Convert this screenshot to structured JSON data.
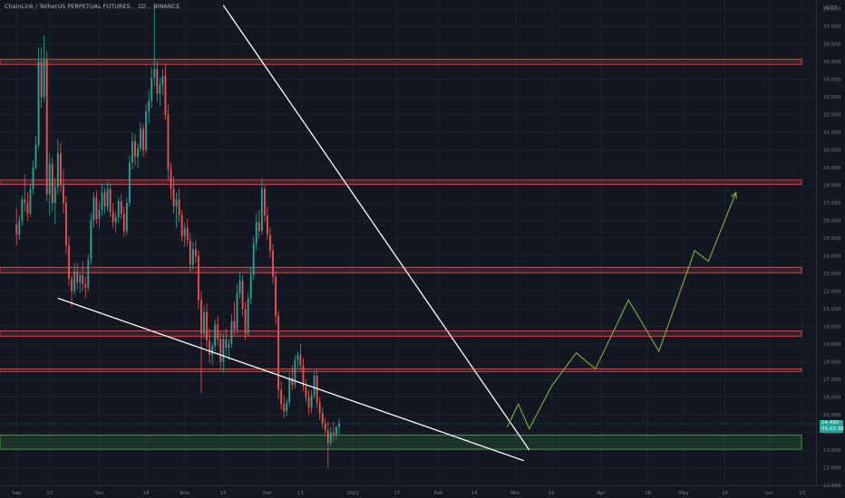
{
  "header": {
    "symbol": "ChainLink / TetherUS PERPETUAL FUTURES",
    "interval": "1D",
    "exchange": "BINANCE",
    "sep": ", "
  },
  "price_tag": {
    "price": "14.490",
    "countdown": "05:01:38"
  },
  "colors": {
    "background": "#131722",
    "up": "#26a69a",
    "down": "#ef5350",
    "resistance": "#ef5350",
    "support": "#4caf50",
    "projection": "#7cb342",
    "trendline": "#ffffff",
    "axis_text": "#787b86"
  },
  "chart_data": {
    "type": "candlestick",
    "y_axis": {
      "unit": "USDT",
      "ylim": [
        11,
        38.5
      ],
      "ticks": [
        "11.000",
        "12.000",
        "13.000",
        "14.000",
        "15.000",
        "16.000",
        "17.000",
        "18.000",
        "19.000",
        "20.000",
        "21.000",
        "22.000",
        "23.000",
        "24.000",
        "25.000",
        "26.000",
        "27.000",
        "28.000",
        "29.000",
        "30.000",
        "31.000",
        "32.000",
        "33.000",
        "34.000",
        "35.000",
        "36.000",
        "37.000",
        "38.000"
      ]
    },
    "x_axis": {
      "ticks": [
        {
          "label": "Sep",
          "day": 0
        },
        {
          "label": "13",
          "day": 12
        },
        {
          "label": "Oct",
          "day": 30
        },
        {
          "label": "18",
          "day": 47
        },
        {
          "label": "Nov",
          "day": 61
        },
        {
          "label": "15",
          "day": 75
        },
        {
          "label": "Dec",
          "day": 91
        },
        {
          "label": "13",
          "day": 103
        },
        {
          "label": "2022",
          "day": 122
        },
        {
          "label": "17",
          "day": 138
        },
        {
          "label": "Feb",
          "day": 153
        },
        {
          "label": "14",
          "day": 166
        },
        {
          "label": "Mar",
          "day": 181
        },
        {
          "label": "14",
          "day": 194
        },
        {
          "label": "Apr",
          "day": 212
        },
        {
          "label": "18",
          "day": 229
        },
        {
          "label": "May",
          "day": 242
        },
        {
          "label": "16",
          "day": 257
        },
        {
          "label": "Jun",
          "day": 273
        },
        {
          "label": "13",
          "day": 285
        }
      ],
      "first_date": "2021-08-27",
      "day_range": [
        -6,
        290
      ]
    },
    "horizontal_levels": [
      {
        "type": "resistance",
        "low": 34.85,
        "high": 35.15
      },
      {
        "type": "resistance",
        "low": 28.05,
        "high": 28.3
      },
      {
        "type": "resistance",
        "low": 23.05,
        "high": 23.35
      },
      {
        "type": "resistance",
        "low": 19.45,
        "high": 19.75
      },
      {
        "type": "resistance",
        "low": 17.45,
        "high": 17.6
      },
      {
        "type": "support",
        "low": 13.05,
        "high": 13.85
      }
    ],
    "trendlines": [
      {
        "from": [
          75,
          38.2
        ],
        "to": [
          186,
          13.0
        ]
      },
      {
        "from": [
          15,
          21.6
        ],
        "to": [
          184,
          12.4
        ]
      }
    ],
    "projection": [
      [
        178,
        14.3
      ],
      [
        182,
        15.6
      ],
      [
        186,
        14.2
      ],
      [
        194,
        16.6
      ],
      [
        203,
        18.5
      ],
      [
        210,
        17.6
      ],
      [
        222,
        21.5
      ],
      [
        233,
        18.6
      ],
      [
        246,
        24.3
      ],
      [
        251,
        23.7
      ],
      [
        261,
        27.6
      ]
    ],
    "current_price": 14.49,
    "candles_ohlc": [
      [
        25.8,
        26.7,
        24.6,
        25.2
      ],
      [
        25.2,
        26.3,
        24.9,
        26.0
      ],
      [
        26.0,
        27.4,
        25.7,
        27.2
      ],
      [
        27.2,
        28.6,
        26.5,
        27.0
      ],
      [
        27.0,
        27.6,
        26.0,
        26.4
      ],
      [
        26.4,
        28.1,
        26.2,
        27.8
      ],
      [
        27.8,
        29.4,
        27.5,
        29.0
      ],
      [
        29.0,
        30.8,
        28.9,
        30.3
      ],
      [
        30.3,
        35.8,
        30.1,
        35.0
      ],
      [
        35.0,
        35.8,
        32.4,
        33.0
      ],
      [
        33.0,
        36.5,
        32.7,
        35.1
      ],
      [
        35.1,
        35.6,
        27.1,
        27.5
      ],
      [
        27.5,
        29.8,
        26.3,
        29.2
      ],
      [
        29.2,
        29.6,
        26.5,
        27.0
      ],
      [
        27.0,
        28.4,
        25.8,
        27.9
      ],
      [
        27.9,
        30.6,
        27.5,
        29.8
      ],
      [
        29.8,
        30.4,
        27.6,
        28.0
      ],
      [
        28.0,
        28.9,
        26.4,
        27.0
      ],
      [
        27.0,
        27.4,
        24.1,
        24.6
      ],
      [
        24.6,
        25.1,
        22.3,
        22.7
      ],
      [
        22.7,
        22.9,
        21.1,
        22.0
      ],
      [
        22.0,
        23.6,
        21.8,
        23.1
      ],
      [
        23.1,
        23.6,
        22.1,
        22.5
      ],
      [
        22.5,
        23.0,
        21.9,
        22.9
      ],
      [
        22.9,
        23.7,
        22.0,
        22.4
      ],
      [
        22.4,
        22.8,
        21.6,
        22.2
      ],
      [
        22.2,
        24.1,
        22.0,
        23.8
      ],
      [
        23.8,
        26.4,
        23.5,
        26.0
      ],
      [
        26.0,
        27.6,
        25.6,
        27.3
      ],
      [
        27.3,
        27.7,
        25.8,
        26.1
      ],
      [
        26.1,
        27.1,
        25.6,
        26.6
      ],
      [
        26.6,
        28.1,
        26.3,
        27.6
      ],
      [
        27.6,
        27.9,
        26.4,
        26.8
      ],
      [
        26.8,
        28.2,
        26.5,
        27.8
      ],
      [
        27.8,
        28.1,
        26.2,
        26.5
      ],
      [
        26.5,
        27.0,
        25.6,
        25.9
      ],
      [
        25.9,
        26.5,
        25.3,
        26.2
      ],
      [
        26.2,
        27.3,
        25.9,
        27.1
      ],
      [
        27.1,
        27.5,
        26.1,
        26.4
      ],
      [
        26.4,
        26.8,
        25.1,
        25.4
      ],
      [
        25.4,
        27.3,
        25.2,
        27.0
      ],
      [
        27.0,
        29.7,
        26.8,
        29.3
      ],
      [
        29.3,
        31.0,
        28.9,
        30.5
      ],
      [
        30.5,
        30.9,
        29.1,
        29.6
      ],
      [
        29.6,
        30.4,
        29.0,
        30.1
      ],
      [
        30.1,
        31.6,
        29.9,
        31.2
      ],
      [
        31.2,
        31.5,
        29.6,
        30.0
      ],
      [
        30.0,
        32.6,
        29.8,
        32.2
      ],
      [
        32.2,
        33.4,
        31.5,
        32.8
      ],
      [
        32.8,
        34.7,
        32.4,
        34.1
      ],
      [
        34.1,
        38.2,
        33.6,
        34.6
      ],
      [
        34.6,
        35.0,
        32.7,
        33.2
      ],
      [
        33.2,
        34.1,
        32.5,
        33.7
      ],
      [
        33.7,
        34.6,
        33.1,
        34.2
      ],
      [
        34.2,
        34.9,
        31.7,
        32.0
      ],
      [
        32.0,
        32.6,
        28.3,
        28.9
      ],
      [
        28.9,
        29.3,
        27.2,
        27.8
      ],
      [
        27.8,
        28.5,
        26.4,
        26.8
      ],
      [
        26.8,
        27.6,
        25.6,
        27.2
      ],
      [
        27.2,
        27.8,
        25.9,
        26.3
      ],
      [
        26.3,
        26.6,
        24.8,
        25.1
      ],
      [
        25.1,
        25.9,
        24.5,
        25.6
      ],
      [
        25.6,
        26.1,
        24.6,
        24.9
      ],
      [
        24.9,
        25.3,
        23.1,
        23.5
      ],
      [
        23.5,
        24.8,
        23.2,
        24.4
      ],
      [
        24.4,
        24.9,
        23.6,
        24.0
      ],
      [
        24.0,
        24.3,
        21.0,
        21.5
      ],
      [
        21.5,
        22.0,
        16.2,
        19.6
      ],
      [
        19.6,
        21.2,
        19.3,
        20.8
      ],
      [
        20.8,
        21.3,
        18.8,
        19.2
      ],
      [
        19.2,
        19.9,
        17.9,
        18.4
      ],
      [
        18.4,
        19.1,
        17.8,
        18.9
      ],
      [
        18.9,
        20.4,
        18.6,
        20.1
      ],
      [
        20.1,
        20.6,
        18.9,
        19.3
      ],
      [
        19.3,
        19.7,
        17.6,
        18.0
      ],
      [
        18.0,
        19.6,
        17.4,
        19.3
      ],
      [
        19.3,
        19.9,
        18.4,
        18.8
      ],
      [
        18.8,
        19.3,
        18.1,
        19.0
      ],
      [
        19.0,
        20.7,
        18.8,
        20.3
      ],
      [
        20.3,
        21.4,
        19.5,
        19.8
      ],
      [
        19.8,
        22.4,
        19.6,
        21.9
      ],
      [
        21.9,
        23.1,
        21.6,
        22.6
      ],
      [
        22.6,
        22.9,
        20.6,
        21.0
      ],
      [
        21.0,
        21.4,
        19.2,
        19.6
      ],
      [
        19.6,
        21.9,
        19.4,
        21.6
      ],
      [
        21.6,
        23.4,
        21.3,
        22.9
      ],
      [
        22.9,
        25.1,
        22.6,
        24.7
      ],
      [
        24.7,
        26.4,
        24.3,
        25.9
      ],
      [
        25.9,
        26.6,
        25.0,
        25.4
      ],
      [
        25.4,
        28.4,
        25.2,
        27.8
      ],
      [
        27.8,
        28.0,
        25.9,
        26.3
      ],
      [
        26.3,
        26.8,
        24.9,
        25.2
      ],
      [
        25.2,
        25.6,
        23.9,
        24.3
      ],
      [
        24.3,
        24.7,
        22.4,
        22.8
      ],
      [
        22.8,
        23.1,
        20.1,
        20.6
      ],
      [
        20.6,
        20.9,
        15.9,
        16.4
      ],
      [
        16.4,
        16.9,
        15.3,
        15.6
      ],
      [
        15.6,
        16.1,
        14.8,
        15.2
      ],
      [
        15.2,
        15.9,
        14.9,
        15.7
      ],
      [
        15.7,
        17.4,
        15.5,
        17.1
      ],
      [
        17.1,
        17.8,
        16.4,
        16.7
      ],
      [
        16.7,
        18.4,
        16.5,
        18.1
      ],
      [
        18.1,
        18.6,
        17.6,
        18.4
      ],
      [
        18.4,
        19.0,
        17.5,
        17.8
      ],
      [
        17.8,
        18.2,
        16.3,
        16.6
      ],
      [
        16.6,
        17.0,
        15.7,
        16.0
      ],
      [
        16.0,
        16.4,
        15.0,
        15.4
      ],
      [
        15.4,
        16.4,
        15.1,
        16.1
      ],
      [
        16.1,
        17.5,
        15.9,
        17.2
      ],
      [
        17.2,
        17.6,
        15.4,
        15.7
      ],
      [
        15.7,
        16.0,
        14.7,
        15.1
      ],
      [
        15.1,
        15.4,
        14.2,
        14.5
      ],
      [
        14.5,
        14.8,
        13.8,
        14.1
      ],
      [
        14.1,
        14.6,
        12.0,
        13.4
      ],
      [
        13.4,
        14.3,
        13.2,
        14.0
      ],
      [
        14.0,
        14.6,
        13.5,
        13.9
      ],
      [
        13.9,
        14.4,
        13.6,
        14.3
      ],
      [
        14.3,
        14.8,
        13.9,
        14.5
      ]
    ]
  }
}
